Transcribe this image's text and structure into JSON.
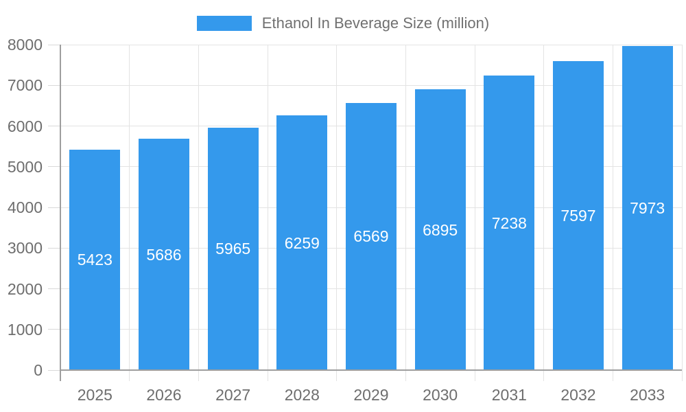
{
  "legend": {
    "label": "Ethanol In Beverage Size (million)"
  },
  "chart_data": {
    "type": "bar",
    "title": "Ethanol In Beverage Size (million)",
    "categories": [
      "2025",
      "2026",
      "2027",
      "2028",
      "2029",
      "2030",
      "2031",
      "2032",
      "2033"
    ],
    "values": [
      5423,
      5686,
      5965,
      6259,
      6569,
      6895,
      7238,
      7597,
      7973
    ],
    "value_labels": [
      "5423",
      "5686",
      "5965",
      "6259",
      "6569",
      "6895",
      "7238",
      "7597",
      "7973"
    ],
    "xlabel": "",
    "ylabel": "",
    "ylim": [
      0,
      8000
    ],
    "yticks": [
      0,
      1000,
      2000,
      3000,
      4000,
      5000,
      6000,
      7000,
      8000
    ],
    "grid": true,
    "legend_position": "top",
    "value_labels_position": "center-of-bar",
    "colors": {
      "bar": "#3499ec",
      "gridline": "#e3e3e3",
      "tick": "#d9d9d9",
      "axis_line": "#9e9e9e",
      "axis_label": "#6e6e6e",
      "legend_label": "#707070",
      "value_label": "#ffffff",
      "background": "#ffffff"
    }
  }
}
